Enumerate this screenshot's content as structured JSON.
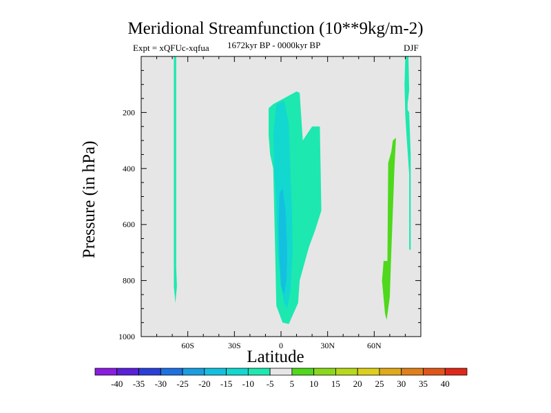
{
  "chart_data": {
    "type": "heatmap",
    "title": "Meridional Streamfunction (10**9kg/m-2)",
    "subtitle_left": "Expt = xQFUc-xqfua",
    "subtitle_center": "1672kyr BP - 0000kyr BP",
    "subtitle_right": "DJF",
    "xlabel": "Latitude",
    "ylabel": "Pressure (in hPa)",
    "xlim": [
      -90,
      90
    ],
    "ylim": [
      1000,
      0
    ],
    "x_ticks": [
      {
        "value": -60,
        "label": "60S"
      },
      {
        "value": -30,
        "label": "30S"
      },
      {
        "value": 0,
        "label": "0"
      },
      {
        "value": 30,
        "label": "30N"
      },
      {
        "value": 60,
        "label": "60N"
      }
    ],
    "y_ticks": [
      {
        "value": 200,
        "label": "200"
      },
      {
        "value": 400,
        "label": "400"
      },
      {
        "value": 600,
        "label": "600"
      },
      {
        "value": 800,
        "label": "800"
      },
      {
        "value": 1000,
        "label": "1000"
      }
    ],
    "colorbar": {
      "labels": [
        "-40",
        "-35",
        "-30",
        "-25",
        "-20",
        "-15",
        "-10",
        "-5",
        "5",
        "10",
        "15",
        "20",
        "25",
        "30",
        "35",
        "40"
      ],
      "colors": [
        "#8a1de0",
        "#5a1fd8",
        "#2a3fd8",
        "#1f70e0",
        "#1a9ee0",
        "#14c0e0",
        "#13d8d0",
        "#1de8b0",
        "#e6e6e6",
        "#4fd81c",
        "#8ad81c",
        "#b8d81c",
        "#dcd01c",
        "#e0aa1a",
        "#e0801a",
        "#e0561a",
        "#e0281a"
      ]
    },
    "filled_regions": [
      {
        "name": "lat-70-strip",
        "level": -10,
        "color": "#1de8b0",
        "points": [
          [
            -69,
            0
          ],
          [
            -67.5,
            0
          ],
          [
            -67.5,
            750
          ],
          [
            -67,
            820
          ],
          [
            -68,
            880
          ],
          [
            -69,
            820
          ]
        ]
      },
      {
        "name": "tropical-cell-outer",
        "level": -10,
        "color": "#1de8b0",
        "points": [
          [
            -8,
            185
          ],
          [
            -5,
            170
          ],
          [
            0,
            155
          ],
          [
            5,
            140
          ],
          [
            10,
            125
          ],
          [
            12,
            130
          ],
          [
            14,
            300
          ],
          [
            20,
            250
          ],
          [
            25,
            250
          ],
          [
            26,
            550
          ],
          [
            22,
            620
          ],
          [
            18,
            680
          ],
          [
            14,
            760
          ],
          [
            12,
            800
          ],
          [
            11,
            880
          ],
          [
            7,
            930
          ],
          [
            5,
            955
          ],
          [
            1,
            950
          ],
          [
            -3,
            890
          ],
          [
            -4,
            640
          ],
          [
            -5,
            400
          ],
          [
            -7,
            350
          ],
          [
            -8,
            280
          ]
        ]
      },
      {
        "name": "tropical-cell-inner",
        "level": -15,
        "color": "#13d8d0",
        "points": [
          [
            -5,
            280
          ],
          [
            -3,
            170
          ],
          [
            2,
            158
          ],
          [
            5,
            240
          ],
          [
            6,
            400
          ],
          [
            7,
            550
          ],
          [
            7.5,
            700
          ],
          [
            6,
            840
          ],
          [
            4,
            900
          ],
          [
            2,
            880
          ],
          [
            0,
            820
          ],
          [
            -2,
            700
          ],
          [
            -3,
            520
          ],
          [
            -4.5,
            400
          ]
        ]
      },
      {
        "name": "tropical-cell-core",
        "level": -20,
        "color": "#14c0e0",
        "points": [
          [
            -1,
            490
          ],
          [
            1,
            470
          ],
          [
            3,
            550
          ],
          [
            4,
            700
          ],
          [
            3.5,
            800
          ],
          [
            2,
            850
          ],
          [
            0,
            820
          ],
          [
            -1,
            720
          ],
          [
            -1.5,
            600
          ]
        ]
      },
      {
        "name": "nh-positive-cell",
        "level": 5,
        "color": "#4fd81c",
        "points": [
          [
            72,
            300
          ],
          [
            74,
            290
          ],
          [
            73,
            400
          ],
          [
            72,
            550
          ],
          [
            71,
            700
          ],
          [
            70,
            860
          ],
          [
            68,
            940
          ],
          [
            67,
            920
          ],
          [
            65,
            800
          ],
          [
            65.5,
            770
          ],
          [
            66,
            730
          ],
          [
            68.5,
            730
          ],
          [
            69,
            380
          ],
          [
            71,
            340
          ]
        ]
      },
      {
        "name": "lat-80-strip",
        "level": -10,
        "color": "#1de8b0",
        "points": [
          [
            80,
            0
          ],
          [
            82,
            0
          ],
          [
            82.5,
            120
          ],
          [
            81.5,
            170
          ],
          [
            81.5,
            190
          ],
          [
            82.5,
            200
          ],
          [
            83.5,
            350
          ],
          [
            83.5,
            690
          ],
          [
            82.5,
            690
          ],
          [
            82.5,
            420
          ],
          [
            81,
            300
          ],
          [
            80,
            210
          ],
          [
            79.5,
            100
          ]
        ]
      }
    ]
  }
}
